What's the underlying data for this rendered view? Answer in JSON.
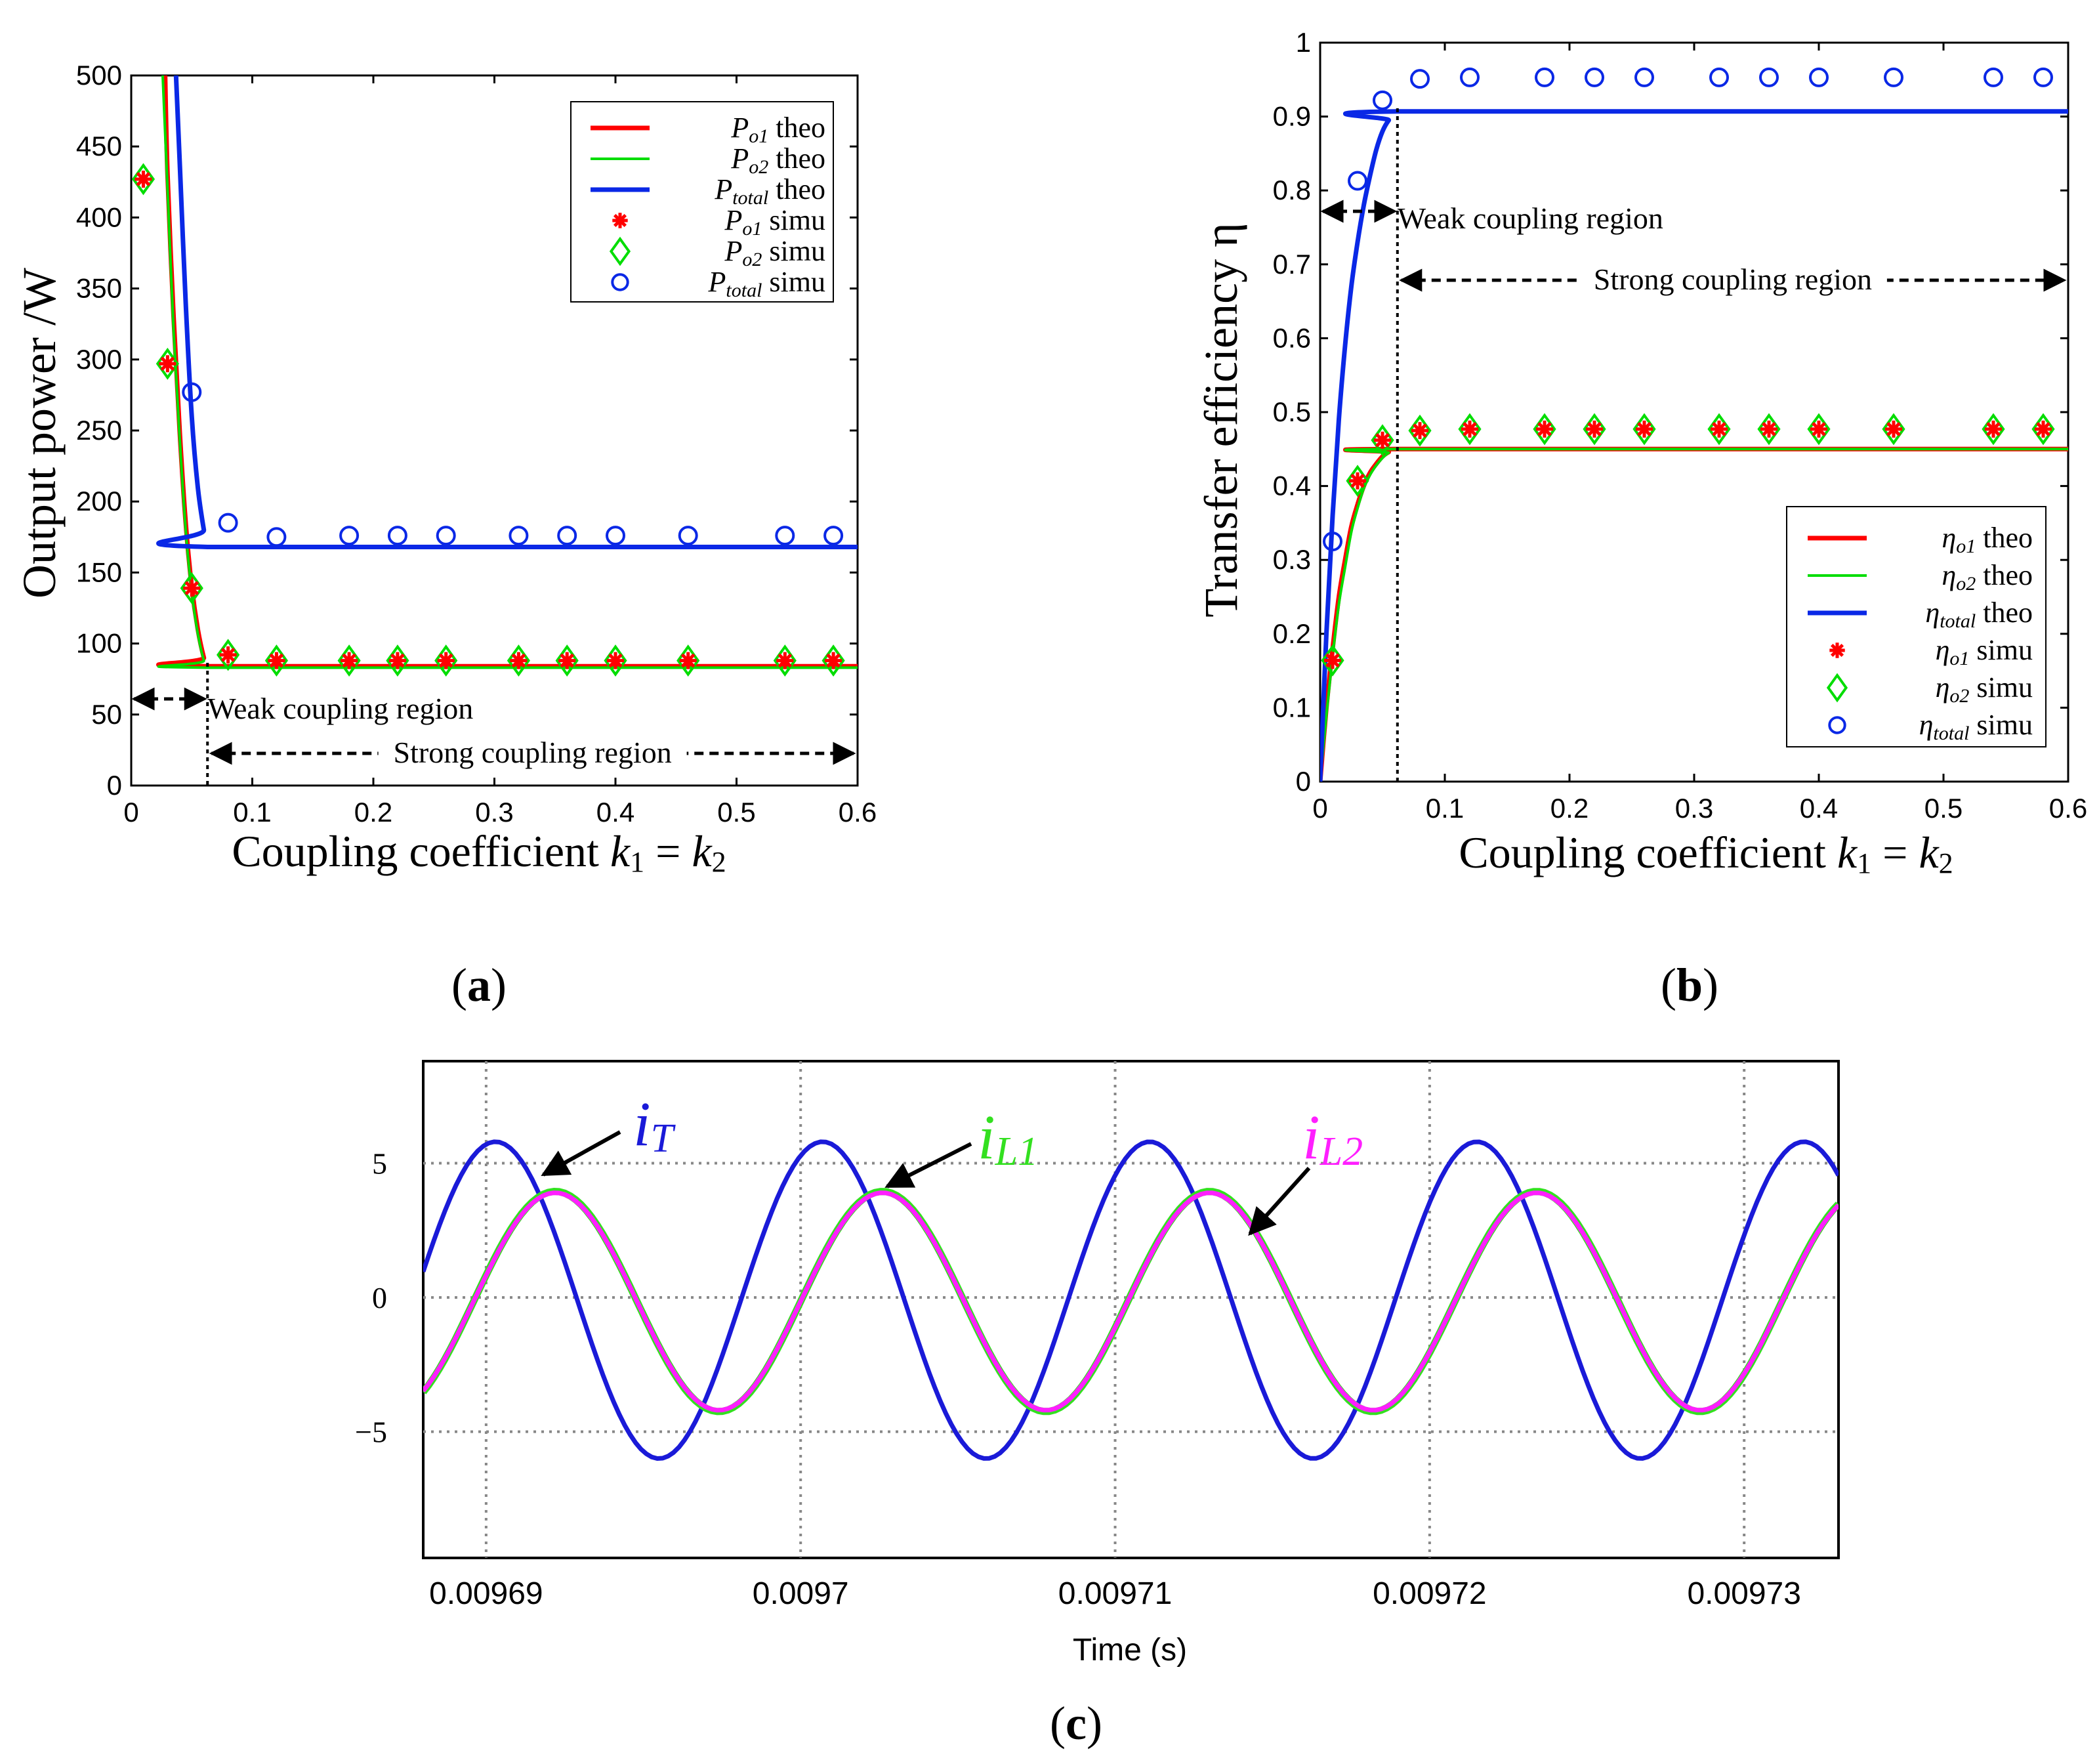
{
  "chart_data": [
    {
      "type": "line",
      "panel_label": "a",
      "xlabel": "Coupling coefficient k1 = k2",
      "xlabel_parts": {
        "prefix": "Coupling coefficient ",
        "k": "k",
        "s1": "1",
        "eq": " = ",
        "s2": "2"
      },
      "ylabel": "Output power /W",
      "xlim": [
        0,
        0.6
      ],
      "ylim": [
        0,
        500
      ],
      "xticks": [
        "0",
        "0.1",
        "0.2",
        "0.3",
        "0.4",
        "0.5",
        "0.6"
      ],
      "yticks": [
        "0",
        "50",
        "100",
        "150",
        "200",
        "250",
        "300",
        "350",
        "400",
        "450",
        "500"
      ],
      "region_boundary_k": 0.063,
      "annotations": {
        "weak": "Weak coupling region",
        "strong": "Strong coupling region"
      },
      "legend": [
        {
          "sym": "P",
          "sub": "o1",
          "text": "theo",
          "kind": "line",
          "color": "#ff0000"
        },
        {
          "sym": "P",
          "sub": "o2",
          "text": "theo",
          "kind": "line",
          "color": "#00dd00"
        },
        {
          "sym": "P",
          "sub": "total",
          "text": "theo",
          "kind": "line",
          "color": "#0a28e6"
        },
        {
          "sym": "P",
          "sub": "o1",
          "text": "simu",
          "kind": "star",
          "color": "#ff0000"
        },
        {
          "sym": "P",
          "sub": "o2",
          "text": "simu",
          "kind": "diamond",
          "color": "#00dd00"
        },
        {
          "sym": "P",
          "sub": "total",
          "text": "simu",
          "kind": "circle",
          "color": "#0a28e6"
        }
      ],
      "series": [
        {
          "name": "Po1 theo",
          "kind": "line",
          "color": "#ff0000",
          "x": [
            0.028,
            0.03,
            0.035,
            0.04,
            0.045,
            0.05,
            0.055,
            0.06,
            0.063,
            0.6
          ],
          "y": [
            500,
            430,
            330,
            250,
            185,
            140,
            110,
            90,
            84,
            84
          ]
        },
        {
          "name": "Po2 theo",
          "kind": "line",
          "color": "#00dd00",
          "x": [
            0.026,
            0.03,
            0.035,
            0.04,
            0.045,
            0.05,
            0.055,
            0.06,
            0.063,
            0.6
          ],
          "y": [
            500,
            420,
            320,
            245,
            180,
            136,
            107,
            88,
            83,
            83
          ]
        },
        {
          "name": "Ptotal theo",
          "kind": "line",
          "color": "#0a28e6",
          "x": [
            0.037,
            0.04,
            0.045,
            0.05,
            0.055,
            0.06,
            0.063,
            0.6
          ],
          "y": [
            500,
            440,
            340,
            260,
            210,
            180,
            168,
            168
          ]
        },
        {
          "name": "Po1 simu",
          "kind": "star",
          "color": "#ff0000",
          "x": [
            0.01,
            0.03,
            0.05,
            0.08,
            0.12,
            0.18,
            0.22,
            0.26,
            0.32,
            0.36,
            0.4,
            0.46,
            0.54,
            0.58
          ],
          "y": [
            427,
            297,
            139,
            92,
            88,
            88,
            88,
            88,
            88,
            88,
            88,
            88,
            88,
            88
          ]
        },
        {
          "name": "Po2 simu",
          "kind": "diamond",
          "color": "#00dd00",
          "x": [
            0.01,
            0.03,
            0.05,
            0.08,
            0.12,
            0.18,
            0.22,
            0.26,
            0.32,
            0.36,
            0.4,
            0.46,
            0.54,
            0.58
          ],
          "y": [
            427,
            297,
            139,
            92,
            88,
            88,
            88,
            88,
            88,
            88,
            88,
            88,
            88,
            88
          ]
        },
        {
          "name": "Ptotal simu",
          "kind": "circle",
          "color": "#0a28e6",
          "x": [
            0.05,
            0.08,
            0.12,
            0.18,
            0.22,
            0.26,
            0.32,
            0.36,
            0.4,
            0.46,
            0.54,
            0.58
          ],
          "y": [
            277,
            185,
            175,
            176,
            176,
            176,
            176,
            176,
            176,
            176,
            176,
            176
          ]
        }
      ]
    },
    {
      "type": "line",
      "panel_label": "b",
      "xlabel": "Coupling coefficient k1 = k2",
      "xlabel_parts": {
        "prefix": "Coupling coefficient ",
        "k": "k",
        "s1": "1",
        "eq": " = ",
        "s2": "2"
      },
      "ylabel": "Transfer efficiency η",
      "xlim": [
        0,
        0.6
      ],
      "ylim": [
        0,
        1
      ],
      "xticks": [
        "0",
        "0.1",
        "0.2",
        "0.3",
        "0.4",
        "0.5",
        "0.6"
      ],
      "yticks": [
        "0",
        "0.1",
        "0.2",
        "0.3",
        "0.4",
        "0.5",
        "0.6",
        "0.7",
        "0.8",
        "0.9",
        "1"
      ],
      "region_boundary_k": 0.062,
      "annotations": {
        "weak": "Weak coupling region",
        "strong": "Strong coupling region"
      },
      "legend": [
        {
          "sym": "η",
          "sub": "o1",
          "text": "theo",
          "kind": "line",
          "color": "#ff0000"
        },
        {
          "sym": "η",
          "sub": "o2",
          "text": "theo",
          "kind": "line",
          "color": "#00dd00"
        },
        {
          "sym": "η",
          "sub": "total",
          "text": "theo",
          "kind": "line",
          "color": "#0a28e6"
        },
        {
          "sym": "η",
          "sub": "o1",
          "text": "simu",
          "kind": "star",
          "color": "#ff0000"
        },
        {
          "sym": "η",
          "sub": "o2",
          "text": "simu",
          "kind": "diamond",
          "color": "#00dd00"
        },
        {
          "sym": "η",
          "sub": "total",
          "text": "simu",
          "kind": "circle",
          "color": "#0a28e6"
        }
      ],
      "series": [
        {
          "name": "ηo1 theo",
          "kind": "line",
          "color": "#ff0000",
          "x": [
            0,
            0.005,
            0.01,
            0.015,
            0.02,
            0.025,
            0.03,
            0.035,
            0.04,
            0.045,
            0.05,
            0.055,
            0.062,
            0.6
          ],
          "y": [
            0,
            0.1,
            0.18,
            0.25,
            0.3,
            0.345,
            0.375,
            0.4,
            0.418,
            0.43,
            0.44,
            0.446,
            0.45,
            0.45
          ]
        },
        {
          "name": "ηo2 theo",
          "kind": "line",
          "color": "#00dd00",
          "x": [
            0,
            0.005,
            0.01,
            0.015,
            0.02,
            0.025,
            0.03,
            0.035,
            0.04,
            0.045,
            0.05,
            0.055,
            0.062,
            0.6
          ],
          "y": [
            0,
            0.09,
            0.17,
            0.24,
            0.29,
            0.338,
            0.37,
            0.397,
            0.415,
            0.428,
            0.438,
            0.445,
            0.45,
            0.45
          ]
        },
        {
          "name": "ηtotal theo",
          "kind": "line",
          "color": "#0a28e6",
          "x": [
            0,
            0.005,
            0.01,
            0.015,
            0.02,
            0.025,
            0.03,
            0.035,
            0.04,
            0.045,
            0.05,
            0.055,
            0.062,
            0.6
          ],
          "y": [
            0,
            0.2,
            0.36,
            0.49,
            0.59,
            0.67,
            0.73,
            0.78,
            0.82,
            0.855,
            0.88,
            0.895,
            0.907,
            0.907
          ]
        },
        {
          "name": "ηo1 simu",
          "kind": "star",
          "color": "#ff0000",
          "x": [
            0.01,
            0.03,
            0.05,
            0.08,
            0.12,
            0.18,
            0.22,
            0.26,
            0.32,
            0.36,
            0.4,
            0.46,
            0.54,
            0.58
          ],
          "y": [
            0.164,
            0.407,
            0.462,
            0.475,
            0.477,
            0.477,
            0.477,
            0.477,
            0.477,
            0.477,
            0.477,
            0.477,
            0.477,
            0.477
          ]
        },
        {
          "name": "ηo2 simu",
          "kind": "diamond",
          "color": "#00dd00",
          "x": [
            0.01,
            0.03,
            0.05,
            0.08,
            0.12,
            0.18,
            0.22,
            0.26,
            0.32,
            0.36,
            0.4,
            0.46,
            0.54,
            0.58
          ],
          "y": [
            0.164,
            0.407,
            0.462,
            0.475,
            0.477,
            0.477,
            0.477,
            0.477,
            0.477,
            0.477,
            0.477,
            0.477,
            0.477,
            0.477
          ]
        },
        {
          "name": "ηtotal simu",
          "kind": "circle",
          "color": "#0a28e6",
          "x": [
            0.01,
            0.03,
            0.05,
            0.08,
            0.12,
            0.18,
            0.22,
            0.26,
            0.32,
            0.36,
            0.4,
            0.46,
            0.54,
            0.58
          ],
          "y": [
            0.325,
            0.813,
            0.922,
            0.951,
            0.953,
            0.953,
            0.953,
            0.953,
            0.953,
            0.953,
            0.953,
            0.953,
            0.953,
            0.953
          ]
        }
      ]
    },
    {
      "type": "line",
      "panel_label": "c",
      "xlabel": "Time (s)",
      "ylabel": "",
      "xlim": [
        0.009688,
        0.009733
      ],
      "ylim": [
        -9.7,
        8.8
      ],
      "xticks": [
        "0.00969",
        "0.0097",
        "0.00971",
        "0.00972",
        "0.00973"
      ],
      "xtick_values": [
        0.00969,
        0.0097,
        0.00971,
        0.00972,
        0.00973
      ],
      "yticks": [
        "−5",
        "0",
        "5"
      ],
      "ytick_values": [
        -5,
        0,
        5
      ],
      "grid": true,
      "period_s": 1.04e-05,
      "series": [
        {
          "name": "iT",
          "label_main": "i",
          "label_sub": "T",
          "color": "#1a1ad8",
          "amplitude": 5.9,
          "offset": -0.1,
          "peak_time": 0.0096903
        },
        {
          "name": "iL1",
          "label_main": "i",
          "label_sub": "L1",
          "color": "#33e020",
          "amplitude": 4.1,
          "offset": -0.15,
          "peak_time": 0.0096922
        },
        {
          "name": "iL2",
          "label_main": "i",
          "label_sub": "L2",
          "color": "#ff1fff",
          "amplitude": 4.05,
          "offset": -0.15,
          "peak_time": 0.0096922
        }
      ]
    }
  ],
  "panel_labels": [
    "(a)",
    "(b)",
    "(c)"
  ]
}
